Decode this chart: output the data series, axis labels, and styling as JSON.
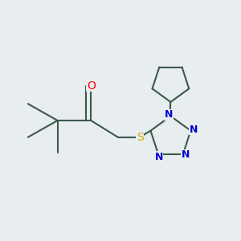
{
  "background_color": "#e8edf0",
  "bond_color": "#3a5a4a",
  "atom_colors": {
    "O": "#ff0000",
    "S": "#ccaa00",
    "N": "#0000cc"
  },
  "bond_width": 1.5,
  "figsize": [
    3.0,
    3.0
  ],
  "dpi": 100
}
